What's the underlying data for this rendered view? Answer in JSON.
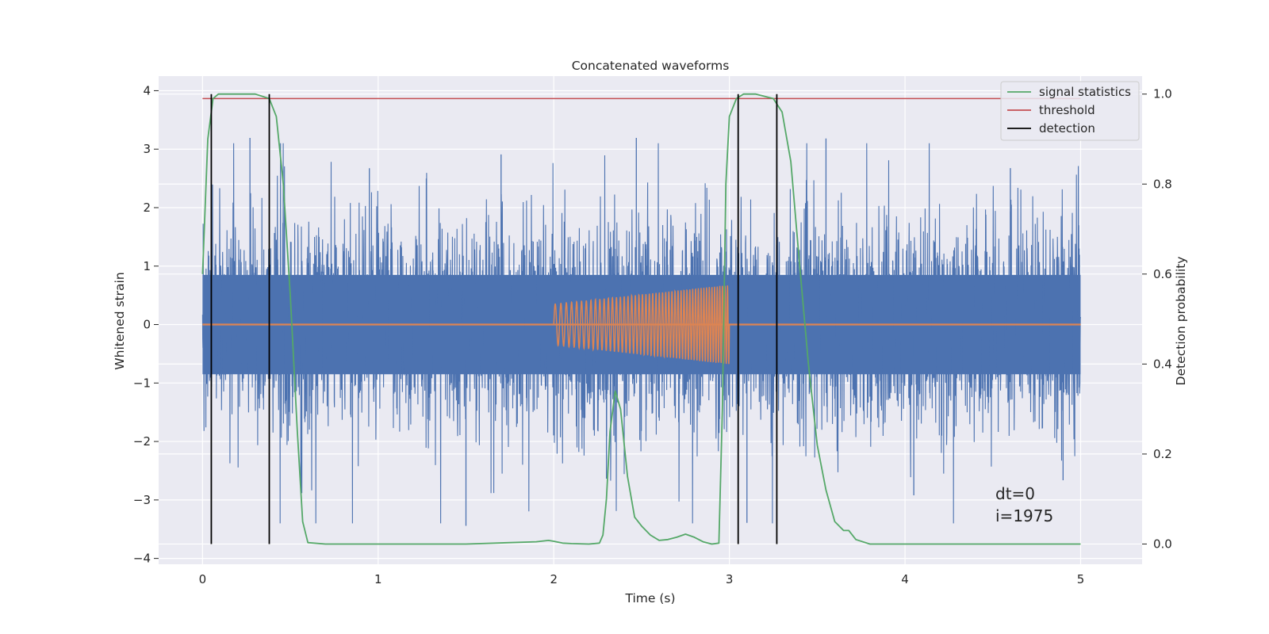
{
  "chart_data": {
    "type": "line",
    "title": "Concatenated waveforms",
    "xlabel": "Time (s)",
    "ylabel": "Whitened strain",
    "y2label": "Detection probability",
    "xlim": [
      -0.25,
      5.35
    ],
    "ylim": [
      -4.1,
      4.25
    ],
    "y2lim": [
      -0.045,
      1.04
    ],
    "xticks": [
      0,
      1,
      2,
      3,
      4,
      5
    ],
    "yticks": [
      -4,
      -3,
      -2,
      -1,
      0,
      1,
      2,
      3,
      4
    ],
    "y2ticks": [
      0.0,
      0.2,
      0.4,
      0.6,
      0.8,
      1.0
    ],
    "xtick_labels": [
      "0",
      "1",
      "2",
      "3",
      "4",
      "5"
    ],
    "ytick_labels": [
      "−4",
      "−3",
      "−2",
      "−1",
      "0",
      "1",
      "2",
      "3",
      "4"
    ],
    "y2tick_labels": [
      "0.0",
      "0.2",
      "0.4",
      "0.6",
      "0.8",
      "1.0"
    ],
    "grid": true,
    "legend_position": "top-right",
    "colors": {
      "strain": "#4c72b0",
      "injection": "#dd8452",
      "signal_statistics": "#55a868",
      "threshold": "#c44e52",
      "detection": "#000000",
      "plot_background": "#eaeaf2",
      "grid": "#ffffff"
    },
    "series": [
      {
        "name": "",
        "axis": "left",
        "kind": "noise",
        "x_range": [
          0,
          5
        ],
        "envelope": 0.85,
        "spike_extremes": [
          -3.7,
          3.3
        ]
      },
      {
        "name": "",
        "axis": "left",
        "kind": "chirp",
        "x": [
          2.0,
          3.0
        ],
        "amplitude_start": 0.35,
        "amplitude_end": 0.68
      },
      {
        "name": "signal statistics",
        "axis": "right",
        "x": [
          0.0,
          0.03,
          0.06,
          0.09,
          0.12,
          0.2,
          0.3,
          0.38,
          0.42,
          0.46,
          0.5,
          0.54,
          0.57,
          0.6,
          0.7,
          1.0,
          1.5,
          1.9,
          1.97,
          2.0,
          2.05,
          2.1,
          2.2,
          2.26,
          2.28,
          2.3,
          2.32,
          2.35,
          2.38,
          2.42,
          2.46,
          2.5,
          2.55,
          2.6,
          2.65,
          2.7,
          2.75,
          2.8,
          2.85,
          2.9,
          2.94,
          2.96,
          2.98,
          3.0,
          3.04,
          3.08,
          3.15,
          3.25,
          3.3,
          3.35,
          3.4,
          3.45,
          3.5,
          3.55,
          3.6,
          3.65,
          3.68,
          3.72,
          3.8,
          4.0,
          4.5,
          5.0
        ],
        "y": [
          0.6,
          0.9,
          0.99,
          1.0,
          1.0,
          1.0,
          1.0,
          0.99,
          0.95,
          0.8,
          0.55,
          0.25,
          0.05,
          0.003,
          0.0,
          0.0,
          0.0,
          0.005,
          0.008,
          0.006,
          0.002,
          0.001,
          0.0,
          0.002,
          0.02,
          0.1,
          0.25,
          0.34,
          0.3,
          0.15,
          0.06,
          0.04,
          0.02,
          0.008,
          0.01,
          0.015,
          0.022,
          0.015,
          0.005,
          0.0,
          0.002,
          0.3,
          0.8,
          0.95,
          0.99,
          1.0,
          1.0,
          0.99,
          0.96,
          0.85,
          0.62,
          0.4,
          0.22,
          0.12,
          0.05,
          0.03,
          0.03,
          0.01,
          0.0,
          0.0,
          0.0,
          0.0
        ]
      },
      {
        "name": "threshold",
        "axis": "right",
        "x": [
          0,
          5
        ],
        "y": [
          0.99,
          0.99
        ]
      }
    ],
    "detection": {
      "name": "detection",
      "axis": "right",
      "x": [
        0.05,
        0.38,
        3.05,
        3.27
      ],
      "y_range": [
        0.0,
        1.0
      ]
    },
    "annotations": [
      "dt=0",
      "i=1975"
    ]
  }
}
